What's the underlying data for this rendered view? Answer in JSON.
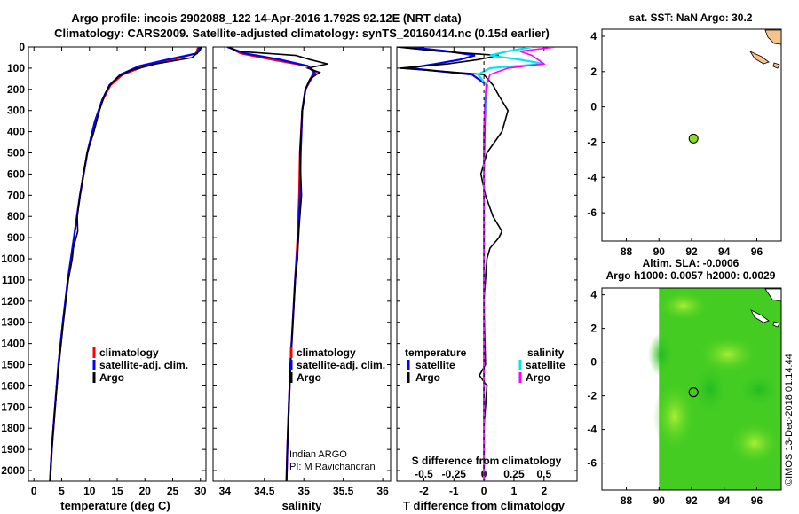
{
  "title_line1": "Argo profile: incois 2902088_122 14-Apr-2016 1.792S 92.12E (NRT data)",
  "title_line2": "Climatology: CARS2009. Satellite-adjusted climatology: synTS_20160414.nc (0.15d earlier)",
  "sst_title": "sat. SST: NaN Argo: 30.2",
  "sla_title1": "Altim. SLA: -0.0006",
  "sla_title2": "Argo h1000: 0.0057 h2000: 0.0029",
  "imos_label": "©IMOS 13-Dec-2018 01:14:44",
  "credit_line1": "Indian ARGO",
  "credit_line2": "PI: M Ravichandran",
  "colors": {
    "climatology": "#ff0000",
    "satellite": "#0000ff",
    "argo": "#000000",
    "sal_satellite": "#00e5ee",
    "sal_argo": "#ff00ff",
    "land": "#f5c48e",
    "sla_field": "#44cc22",
    "marker": "#88dd22"
  },
  "chart_data": [
    {
      "type": "line",
      "xlabel": "temperature (deg C)",
      "xlim": [
        -1,
        31
      ],
      "ylim": [
        2050,
        0
      ],
      "xticks": [
        0,
        5,
        10,
        15,
        20,
        25,
        30
      ],
      "yticks": [
        0,
        100,
        200,
        300,
        400,
        500,
        600,
        700,
        800,
        900,
        1000,
        1100,
        1200,
        1300,
        1400,
        1500,
        1600,
        1700,
        1800,
        1900,
        2000
      ],
      "legend": [
        "climatology",
        "satellite-adj. clim.",
        "Argo"
      ],
      "series": [
        {
          "name": "climatology",
          "depth": [
            0,
            30,
            60,
            90,
            130,
            180,
            250,
            350,
            500,
            700,
            900,
            1100,
            1300,
            1500,
            1700,
            1900,
            2050
          ],
          "values": [
            29.6,
            29.2,
            25,
            20,
            16,
            13.8,
            12.4,
            11,
            9.6,
            8.3,
            7.2,
            6.1,
            5.2,
            4.4,
            3.8,
            3.2,
            2.9
          ]
        },
        {
          "name": "satellite-adj. clim.",
          "depth": [
            0,
            30,
            60,
            90,
            130,
            180,
            250,
            350,
            500,
            700,
            900,
            1100,
            1300,
            1500,
            1700,
            1900,
            2050
          ],
          "values": [
            29.8,
            29.4,
            24,
            19,
            15.6,
            13.6,
            12.3,
            11,
            9.6,
            8.3,
            7.2,
            6.1,
            5.2,
            4.4,
            3.8,
            3.2,
            2.9
          ]
        },
        {
          "name": "Argo",
          "depth": [
            0,
            20,
            50,
            80,
            110,
            140,
            180,
            220,
            300,
            400,
            500,
            600,
            700,
            800,
            870,
            950,
            1000,
            1100,
            1300,
            1500,
            1700,
            1900,
            2050
          ],
          "values": [
            30.2,
            29.8,
            28.5,
            22,
            17.5,
            15.2,
            13.7,
            12.8,
            11.8,
            10.8,
            9.6,
            8.9,
            8.3,
            7.8,
            7.9,
            7.1,
            6.9,
            6.2,
            5.3,
            4.5,
            3.8,
            3.2,
            2.9
          ]
        }
      ]
    },
    {
      "type": "line",
      "xlabel": "salinity",
      "xlim": [
        33.85,
        36.1
      ],
      "ylim": [
        2050,
        0
      ],
      "xticks": [
        34,
        34.5,
        35,
        35.5,
        36
      ],
      "legend": [
        "climatology",
        "satellite-adj. clim.",
        "Argo"
      ],
      "series": [
        {
          "name": "climatology",
          "depth": [
            0,
            30,
            60,
            90,
            120,
            160,
            200,
            300,
            500,
            700,
            900,
            1100,
            1300,
            1500,
            1700,
            1900,
            2050
          ],
          "values": [
            34.05,
            34.2,
            34.6,
            35.05,
            35.15,
            35.08,
            35.02,
            34.98,
            34.95,
            34.94,
            34.92,
            34.89,
            34.86,
            34.83,
            34.81,
            34.79,
            34.78
          ]
        },
        {
          "name": "satellite-adj. clim.",
          "depth": [
            0,
            30,
            60,
            90,
            120,
            160,
            200,
            300,
            500,
            700,
            900,
            1100,
            1300,
            1500,
            1700,
            1900,
            2050
          ],
          "values": [
            34.03,
            34.25,
            34.7,
            35.05,
            35.13,
            35.07,
            35.02,
            34.98,
            34.96,
            34.95,
            34.93,
            34.89,
            34.86,
            34.83,
            34.81,
            34.79,
            34.78
          ]
        },
        {
          "name": "Argo",
          "depth": [
            0,
            20,
            40,
            60,
            80,
            100,
            120,
            150,
            200,
            300,
            500,
            700,
            800,
            900,
            1000,
            1100,
            1300,
            1500,
            1700,
            1900,
            2050
          ],
          "values": [
            34.05,
            34.15,
            34.9,
            35.08,
            35.3,
            35.05,
            35.2,
            35.08,
            35.02,
            34.98,
            34.95,
            34.97,
            34.95,
            34.93,
            34.92,
            34.89,
            34.86,
            34.83,
            34.81,
            34.79,
            34.78
          ]
        }
      ]
    },
    {
      "type": "line",
      "xlabel": "T difference from climatology",
      "xlabel_top": "S difference from climatology",
      "xlim": [
        -2.9,
        3.1
      ],
      "ylim": [
        2050,
        0
      ],
      "xticks": [
        -2,
        -1,
        0,
        1,
        2
      ],
      "xticks_top": [
        "-0.5",
        "-0.25",
        "0",
        "0.25",
        "0.5"
      ],
      "legend_temperature": [
        "temperature",
        "satellite",
        "Argo"
      ],
      "legend_salinity": [
        "salinity",
        "satellite",
        "Argo"
      ],
      "series": [
        {
          "name": "T satellite",
          "depth": [
            0,
            20,
            40,
            60,
            80,
            100,
            130,
            180,
            250,
            400,
            600,
            900,
            1200,
            1600,
            2050
          ],
          "values": [
            -2.5,
            -1.2,
            -0.3,
            -0.8,
            -1.6,
            -2.5,
            -0.4,
            0.1,
            0.05,
            0.02,
            0,
            0,
            0,
            0,
            0
          ]
        },
        {
          "name": "T Argo",
          "depth": [
            0,
            20,
            40,
            60,
            80,
            100,
            130,
            180,
            230,
            300,
            400,
            500,
            600,
            700,
            800,
            870,
            900,
            950,
            1000,
            1200,
            1500,
            1550,
            1600,
            1800,
            2050
          ],
          "values": [
            -2.9,
            -1.5,
            0.5,
            -0.2,
            -1.2,
            -2.8,
            0,
            0.3,
            0.5,
            0.8,
            0.6,
            0.1,
            -0.1,
            0.05,
            0.3,
            0.6,
            0.5,
            0.2,
            0.1,
            0,
            0.05,
            -0.15,
            0.1,
            0,
            0
          ]
        },
        {
          "name": "S satellite",
          "depth": [
            0,
            20,
            40,
            60,
            80,
            100,
            130,
            180,
            250,
            400,
            600,
            900,
            1200,
            1600,
            2050
          ],
          "values": [
            0.4,
            0.2,
            0.05,
            0.3,
            0.5,
            0.05,
            -0.05,
            0.02,
            0.01,
            0,
            0,
            0,
            0,
            0,
            0
          ]
        },
        {
          "name": "S Argo",
          "depth": [
            0,
            20,
            40,
            60,
            80,
            100,
            130,
            180,
            250,
            400,
            600,
            900,
            1200,
            1600,
            2050
          ],
          "values": [
            0.6,
            0.3,
            0.4,
            0.45,
            0.5,
            0.2,
            0.05,
            0.02,
            0.01,
            0,
            0,
            0,
            0,
            0,
            0
          ]
        }
      ]
    },
    {
      "type": "scatter",
      "title": "sat. SST: NaN Argo: 30.2",
      "xlim": [
        86.5,
        97.5
      ],
      "ylim": [
        -7.6,
        4.4
      ],
      "xticks": [
        88,
        90,
        92,
        94,
        96
      ],
      "yticks": [
        4,
        2,
        0,
        -2,
        -4,
        -6
      ],
      "points": [
        {
          "lon": 92.12,
          "lat": -1.792
        }
      ]
    },
    {
      "type": "heatmap",
      "title": "Altim. SLA: -0.0006 / Argo h1000: 0.0057 h2000: 0.0029",
      "xlim": [
        86.5,
        97.5
      ],
      "ylim": [
        -7.6,
        4.4
      ],
      "xticks": [
        88,
        90,
        92,
        94,
        96
      ],
      "yticks": [
        4,
        2,
        0,
        -2,
        -4,
        -6
      ],
      "field_lon_range": [
        90,
        97.5
      ],
      "points": [
        {
          "lon": 92.12,
          "lat": -1.792
        }
      ]
    }
  ]
}
